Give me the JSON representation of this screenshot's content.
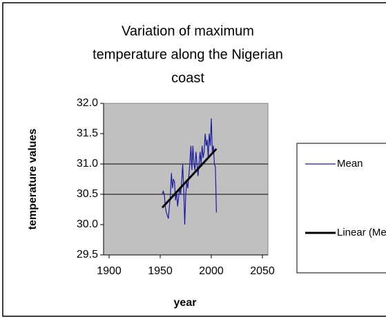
{
  "chart_data": {
    "type": "line",
    "title": [
      "Variation of maximum",
      "temperature along the Nigerian",
      "coast"
    ],
    "x_label": "year",
    "y_label": "temperature values",
    "xlim": [
      1900,
      2050
    ],
    "xticks": [
      1900,
      1950,
      2000,
      2050
    ],
    "ylim": [
      29.5,
      32.0
    ],
    "yticks": [
      {
        "value": 29.5,
        "label": "29.5"
      },
      {
        "value": 30.0,
        "label": "30.0"
      },
      {
        "value": 30.5,
        "label": "30.5"
      },
      {
        "value": 31.0,
        "label": "31.0"
      },
      {
        "value": 31.5,
        "label": "31.5"
      },
      {
        "value": 32.0,
        "label": "32.0"
      }
    ],
    "grid_values": [
      30.5,
      31.0
    ],
    "series": [
      {
        "name": "Mean",
        "color": "#1a1aa0",
        "x": [
          1952,
          1953,
          1954,
          1955,
          1956,
          1957,
          1958,
          1959,
          1960,
          1961,
          1962,
          1963,
          1964,
          1965,
          1966,
          1967,
          1968,
          1969,
          1970,
          1971,
          1972,
          1973,
          1974,
          1975,
          1976,
          1977,
          1978,
          1979,
          1980,
          1981,
          1982,
          1983,
          1984,
          1985,
          1986,
          1987,
          1988,
          1989,
          1990,
          1991,
          1992,
          1993,
          1994,
          1995,
          1996,
          1997,
          1998,
          1999,
          2000,
          2001,
          2002,
          2003,
          2004,
          2005
        ],
        "values": [
          30.5,
          30.55,
          30.5,
          30.3,
          30.2,
          30.15,
          30.1,
          30.3,
          30.5,
          30.85,
          30.6,
          30.75,
          30.7,
          30.4,
          30.55,
          30.3,
          30.45,
          30.6,
          30.5,
          30.7,
          31.0,
          30.6,
          30.0,
          30.5,
          30.7,
          30.6,
          30.8,
          31.0,
          31.3,
          30.9,
          31.3,
          31.0,
          30.9,
          31.2,
          31.0,
          30.8,
          31.0,
          31.2,
          31.0,
          31.3,
          31.1,
          31.2,
          31.5,
          31.3,
          31.4,
          31.1,
          31.5,
          31.3,
          31.75,
          31.2,
          31.3,
          31.0,
          30.95,
          30.2
        ]
      },
      {
        "name": "Linear (Mean)",
        "color": "#000000",
        "x": [
          1952,
          2005
        ],
        "values": [
          30.28,
          31.25
        ]
      }
    ]
  }
}
